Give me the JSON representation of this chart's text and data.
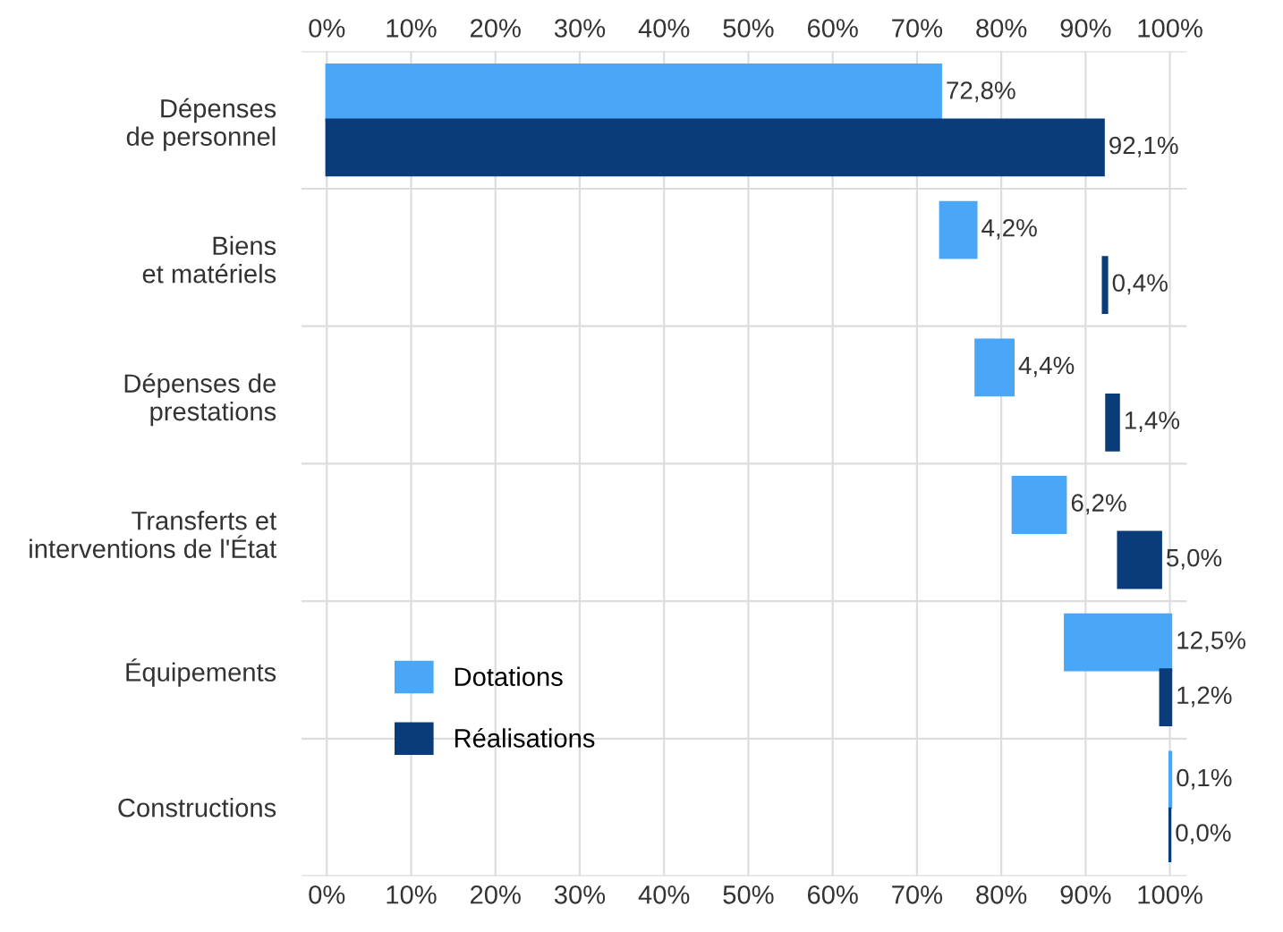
{
  "chart_data": {
    "type": "bar",
    "orientation": "horizontal",
    "categories": [
      "Dépenses\nde personnel",
      "Biens\net matériels",
      "Dépenses de\nprestations",
      "Transferts et\ninterventions de l'État",
      "Équipements",
      "Constructions"
    ],
    "series": [
      {
        "name": "Dotations",
        "color": "#4aa6f7",
        "values": [
          72.8,
          4.2,
          4.4,
          6.2,
          12.5,
          0.1
        ],
        "base": [
          0,
          72.8,
          77.0,
          81.4,
          87.6,
          100.0
        ],
        "value_labels": [
          "72,8%",
          "4,2%",
          "4,4%",
          "6,2%",
          "12,5%",
          "0,1%"
        ]
      },
      {
        "name": "Réalisations",
        "color": "#0a3c7a",
        "values": [
          92.1,
          0.4,
          1.4,
          5.0,
          1.2,
          0.0
        ],
        "base": [
          0,
          92.1,
          92.5,
          93.9,
          98.9,
          100.0
        ],
        "value_labels": [
          "92,1%",
          "0,4%",
          "1,4%",
          "5,0%",
          "1,2%",
          "0,0%"
        ]
      }
    ],
    "xlim": [
      -3,
      102
    ],
    "xticks": [
      {
        "value": 0,
        "label": "0%"
      },
      {
        "value": 10,
        "label": "10%"
      },
      {
        "value": 20,
        "label": "20%"
      },
      {
        "value": 30,
        "label": "30%"
      },
      {
        "value": 40,
        "label": "40%"
      },
      {
        "value": 50,
        "label": "50%"
      },
      {
        "value": 60,
        "label": "60%"
      },
      {
        "value": 70,
        "label": "70%"
      },
      {
        "value": 80,
        "label": "80%"
      },
      {
        "value": 90,
        "label": "90%"
      },
      {
        "value": 100,
        "label": "100%"
      }
    ],
    "x2lim": [
      -3,
      102
    ],
    "x2ticks": [
      {
        "value": 0,
        "label": "0%"
      },
      {
        "value": 10,
        "label": "10%"
      },
      {
        "value": 20,
        "label": "20%"
      },
      {
        "value": 30,
        "label": "30%"
      },
      {
        "value": 40,
        "label": "40%"
      },
      {
        "value": 50,
        "label": "50%"
      },
      {
        "value": 60,
        "label": "60%"
      },
      {
        "value": 70,
        "label": "70%"
      },
      {
        "value": 80,
        "label": "80%"
      },
      {
        "value": 90,
        "label": "90%"
      },
      {
        "value": 100,
        "label": "100%"
      }
    ],
    "grid": true,
    "legend": "bottom left"
  }
}
